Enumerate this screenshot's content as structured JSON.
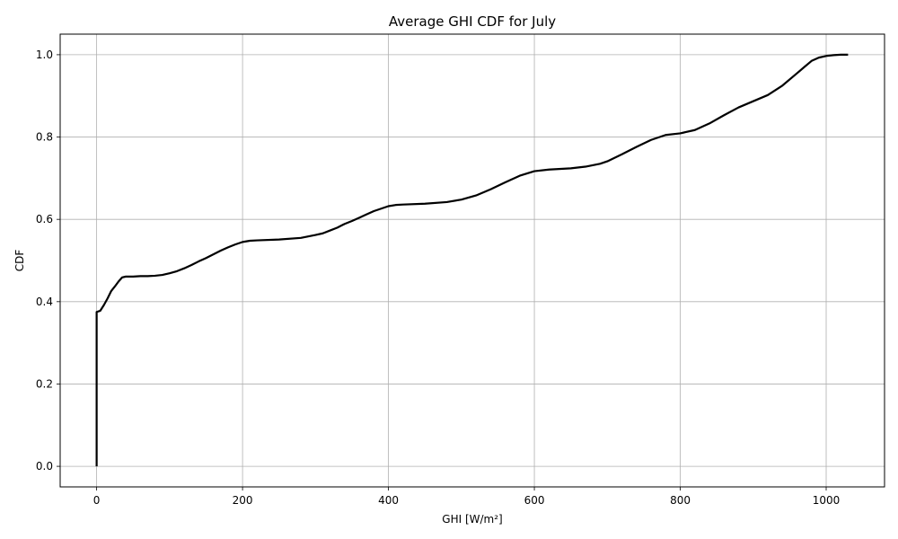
{
  "chart_data": {
    "type": "line",
    "title": "Average GHI CDF for July",
    "xlabel": "GHI [W/m²]",
    "ylabel": "CDF",
    "xlim": [
      -50,
      1080
    ],
    "ylim": [
      -0.05,
      1.05
    ],
    "xticks": [
      0,
      200,
      400,
      600,
      800,
      1000
    ],
    "yticks": [
      0.0,
      0.2,
      0.4,
      0.6,
      0.8,
      1.0
    ],
    "xtick_labels": [
      "0",
      "200",
      "400",
      "600",
      "800",
      "1000"
    ],
    "ytick_labels": [
      "0.0",
      "0.2",
      "0.4",
      "0.6",
      "0.8",
      "1.0"
    ],
    "grid": true,
    "series": [
      {
        "color": "#000000",
        "x": [
          0,
          0,
          0,
          5,
          10,
          15,
          20,
          25,
          30,
          35,
          40,
          45,
          50,
          60,
          70,
          80,
          90,
          100,
          110,
          120,
          130,
          140,
          150,
          160,
          170,
          180,
          190,
          200,
          210,
          220,
          250,
          280,
          300,
          310,
          320,
          330,
          340,
          350,
          360,
          370,
          380,
          390,
          400,
          410,
          420,
          450,
          480,
          500,
          520,
          540,
          560,
          580,
          600,
          620,
          650,
          670,
          690,
          700,
          720,
          740,
          760,
          780,
          800,
          820,
          840,
          860,
          880,
          900,
          920,
          940,
          960,
          970,
          980,
          990,
          1000,
          1010,
          1020,
          1030
        ],
        "y": [
          0.0,
          0.2,
          0.375,
          0.378,
          0.392,
          0.408,
          0.426,
          0.437,
          0.449,
          0.459,
          0.461,
          0.461,
          0.461,
          0.462,
          0.462,
          0.463,
          0.465,
          0.469,
          0.474,
          0.481,
          0.489,
          0.498,
          0.506,
          0.515,
          0.524,
          0.532,
          0.539,
          0.545,
          0.548,
          0.549,
          0.551,
          0.555,
          0.562,
          0.566,
          0.573,
          0.58,
          0.589,
          0.596,
          0.604,
          0.612,
          0.62,
          0.626,
          0.632,
          0.635,
          0.636,
          0.638,
          0.642,
          0.648,
          0.658,
          0.673,
          0.69,
          0.706,
          0.717,
          0.721,
          0.724,
          0.728,
          0.735,
          0.741,
          0.758,
          0.776,
          0.793,
          0.805,
          0.809,
          0.817,
          0.833,
          0.853,
          0.872,
          0.887,
          0.902,
          0.925,
          0.955,
          0.97,
          0.985,
          0.993,
          0.997,
          0.999,
          1.0,
          1.0
        ]
      }
    ]
  }
}
